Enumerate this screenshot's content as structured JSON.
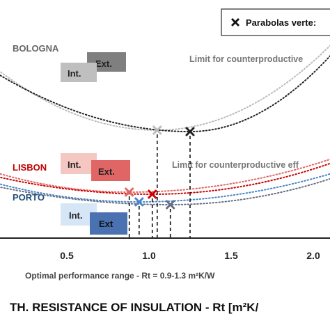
{
  "chart_data": {
    "type": "line",
    "title": "",
    "xlabel": "TH. RESISTANCE  OF INSULATION - Rt [m²K/",
    "ylabel": "",
    "x_ticks": [
      "0.5",
      "1.0",
      "1.5",
      "2.0"
    ],
    "x_tick_values": [
      0.5,
      1.0,
      1.5,
      2.0
    ],
    "xlim": [
      0.1,
      2.15
    ],
    "legend": {
      "label": "Parabolas verte:",
      "marker": "x",
      "placement": "top-right"
    },
    "range_note": "Optimal performance range - Rt = 0.9-1.3 m²K/W",
    "optimal_range": [
      0.9,
      1.3
    ],
    "annotations": [
      {
        "text": "Limit for counterproductive",
        "color": "#777777"
      },
      {
        "text": "Limit for counterproductive eff",
        "color": "#777777"
      }
    ],
    "series": [
      {
        "city": "BOLOGNA",
        "type": "Int.",
        "color": "#bbbbbb",
        "vertex_x": 1.05,
        "shape": [
          0.0,
          70,
          1.05,
          0,
          2.2,
          100
        ]
      },
      {
        "city": "BOLOGNA",
        "type": "Ext.",
        "color": "#222222",
        "vertex_x": 1.25,
        "shape": [
          0.0,
          70,
          1.25,
          0,
          2.2,
          100
        ]
      },
      {
        "city": "LISBON",
        "type": "Int.",
        "color": "#e06666",
        "vertex_x": 0.88,
        "shape": [
          0.0,
          30,
          0.88,
          0,
          2.2,
          50
        ]
      },
      {
        "city": "LISBON",
        "type": "Ext.",
        "color": "#cc0000",
        "vertex_x": 1.02,
        "shape": [
          0.0,
          28,
          1.02,
          0,
          2.2,
          50
        ]
      },
      {
        "city": "PORTO",
        "type": "Int.",
        "color": "#4a86c8",
        "vertex_x": 0.94,
        "shape": [
          0.0,
          30,
          0.94,
          0,
          2.2,
          45
        ]
      },
      {
        "city": "PORTO",
        "type": "Ext.",
        "color": "#666e80",
        "vertex_x": 1.13,
        "shape": [
          0.0,
          30,
          1.13,
          0,
          2.2,
          45
        ]
      }
    ]
  },
  "cities": [
    {
      "name": "BOLOGNA",
      "color": "#666666",
      "int_label": "Int.",
      "ext_label": "Ext.",
      "int_fill": "#bfbfbf",
      "ext_fill": "#7f7f7f",
      "int_text": "#222222",
      "ext_text": "#222222"
    },
    {
      "name": "LISBON",
      "color": "#c00000",
      "int_label": "Int.",
      "ext_label": "Ext.",
      "int_fill": "#f4c7c3",
      "ext_fill": "#e06666",
      "int_text": "#222222",
      "ext_text": "#222222"
    },
    {
      "name": "PORTO",
      "color": "#1f4e79",
      "int_label": "Int.",
      "ext_label": "Ext",
      "int_fill": "#d6e6f7",
      "ext_fill": "#4a72b0",
      "int_text": "#222222",
      "ext_text": "#111111"
    }
  ]
}
